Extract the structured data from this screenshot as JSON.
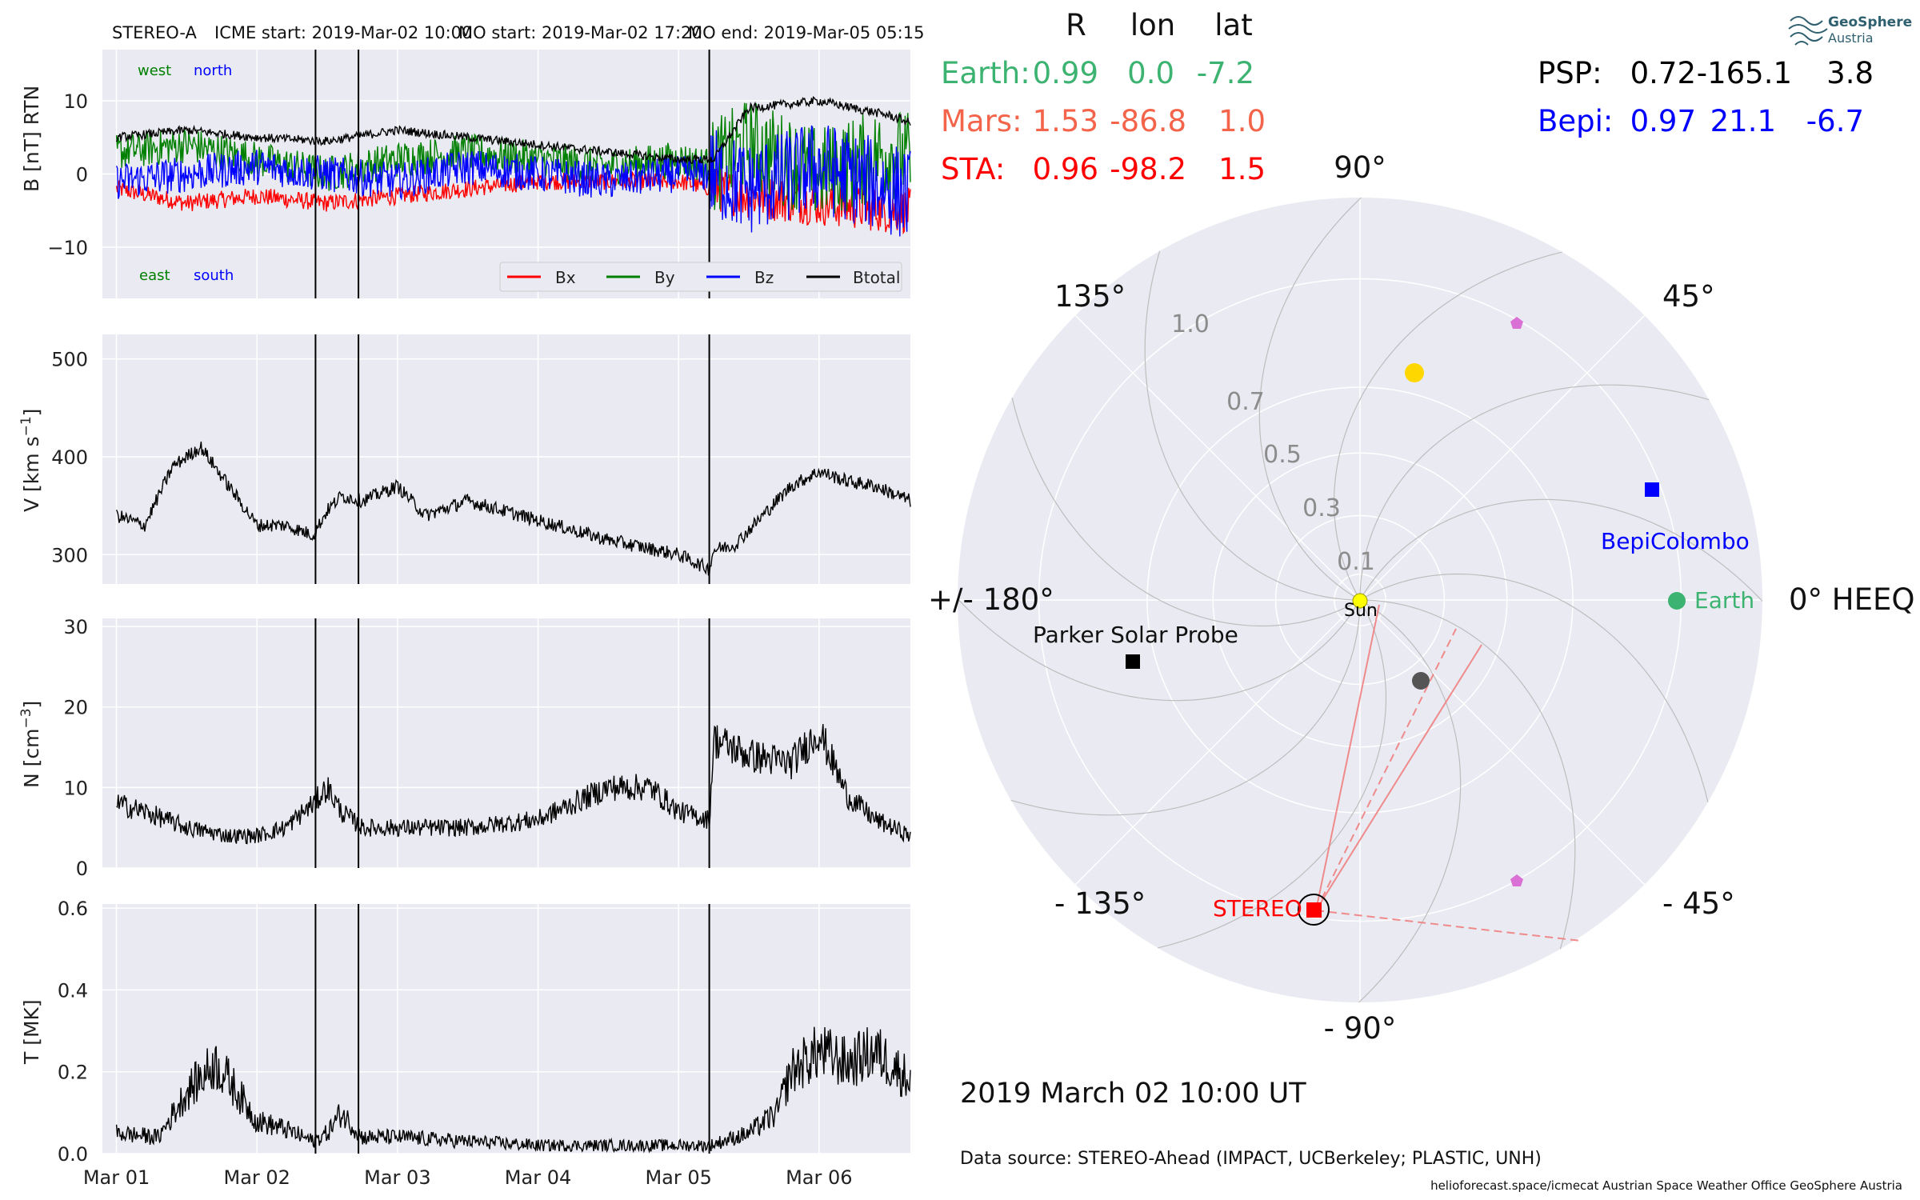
{
  "header": {
    "spacecraft": "STEREO-A",
    "icme_start": "ICME start: 2019-Mar-02 10:00",
    "mo_start": "MO start: 2019-Mar-02 17:20",
    "mo_end": "MO end: 2019-Mar-05 05:15"
  },
  "colors": {
    "panel_bg": "#eaeaf2",
    "bx": "#ff0000",
    "by": "#008000",
    "bz": "#0000ff",
    "btotal": "#000000",
    "earth": "#3cb371",
    "mars": "#f4644a",
    "sta": "#ff0000",
    "bepi": "#0000ff",
    "psp": "#000000",
    "pentagon": "#da70d6",
    "sun": "#ffff00",
    "venus": "#ffd700",
    "mercury": "#555555"
  },
  "chart_data": [
    {
      "type": "line",
      "panel": "magnetic-field",
      "ylabel": "B [nT] RTN",
      "ylim": [
        -17,
        17
      ],
      "yticks": [
        -10,
        0,
        10
      ],
      "xlim_days": [
        -0.1,
        5.65
      ],
      "x_tick_labels": [
        "Mar 01",
        "Mar 02",
        "Mar 03",
        "Mar 04",
        "Mar 05",
        "Mar 06"
      ],
      "vlines": [
        "2019-03-02 10:00",
        "2019-03-02 17:20",
        "2019-03-05 05:15"
      ],
      "annotations": {
        "top_left": "west",
        "top_right": "north",
        "bottom_left": "east",
        "bottom_right": "south"
      },
      "legend": "bottom-right",
      "grid": true,
      "series": [
        {
          "name": "Bx",
          "x": [
            0,
            0.5,
            1,
            1.5,
            2,
            2.5,
            3,
            3.5,
            4,
            4.25,
            4.5,
            5,
            5.5,
            5.65
          ],
          "values": [
            -2,
            -4,
            -3,
            -4,
            -3,
            -2,
            -1,
            -1,
            -1,
            -2,
            -3,
            -4,
            -5,
            -5
          ]
        },
        {
          "name": "By",
          "x": [
            0,
            0.5,
            1,
            1.5,
            2,
            2.5,
            3,
            3.5,
            4,
            4.25,
            4.5,
            5,
            5.5,
            5.65
          ],
          "values": [
            3,
            4,
            2,
            0,
            2,
            3,
            2,
            1,
            2,
            1,
            4,
            0,
            3,
            2
          ]
        },
        {
          "name": "Bz",
          "x": [
            0,
            0.5,
            1,
            1.5,
            2,
            2.5,
            3,
            3.5,
            4,
            4.25,
            4.5,
            5,
            5.5,
            5.65
          ],
          "values": [
            -1,
            0,
            1,
            0,
            -1,
            1,
            0,
            -1,
            0,
            0,
            -2,
            1,
            -2,
            -3
          ]
        },
        {
          "name": "Btotal",
          "x": [
            0,
            0.5,
            1,
            1.5,
            2,
            2.5,
            3,
            3.5,
            4,
            4.25,
            4.5,
            5,
            5.5,
            5.65
          ],
          "values": [
            5,
            6,
            5,
            4.5,
            6,
            5,
            4,
            3,
            2,
            2,
            9,
            10,
            8,
            7
          ]
        }
      ]
    },
    {
      "type": "line",
      "panel": "speed",
      "ylabel": "V [km s^-1]",
      "ylim": [
        270,
        525
      ],
      "yticks": [
        300,
        400,
        500
      ],
      "grid": true,
      "series": [
        {
          "name": "V",
          "x": [
            0,
            0.2,
            0.4,
            0.6,
            0.8,
            1.0,
            1.2,
            1.4,
            1.5,
            1.6,
            1.75,
            2.0,
            2.2,
            2.5,
            3.0,
            3.5,
            4.0,
            4.22,
            4.25,
            4.4,
            4.6,
            4.8,
            5.0,
            5.2,
            5.4,
            5.65
          ],
          "values": [
            340,
            330,
            390,
            410,
            370,
            330,
            330,
            320,
            345,
            360,
            355,
            370,
            340,
            355,
            335,
            315,
            300,
            285,
            305,
            310,
            340,
            370,
            385,
            375,
            370,
            355
          ]
        }
      ]
    },
    {
      "type": "line",
      "panel": "density",
      "ylabel": "N [cm^-3]",
      "ylim": [
        0,
        31
      ],
      "yticks": [
        0,
        10,
        20,
        30
      ],
      "grid": true,
      "series": [
        {
          "name": "N",
          "x": [
            0,
            0.2,
            0.5,
            0.8,
            1.0,
            1.2,
            1.4,
            1.5,
            1.6,
            1.75,
            2.0,
            2.5,
            3.0,
            3.5,
            3.8,
            4.0,
            4.22,
            4.25,
            4.5,
            4.8,
            5.0,
            5.2,
            5.4,
            5.65
          ],
          "values": [
            8,
            7,
            5,
            4,
            4,
            5,
            8,
            10,
            7,
            5,
            5,
            5,
            6,
            10,
            10,
            7,
            6,
            16,
            14,
            13,
            17,
            9,
            6,
            4
          ]
        }
      ]
    },
    {
      "type": "line",
      "panel": "temperature",
      "ylabel": "T [MK]",
      "ylim": [
        0,
        0.61
      ],
      "yticks": [
        0.0,
        0.2,
        0.4,
        0.6
      ],
      "grid": true,
      "series": [
        {
          "name": "T",
          "x": [
            0,
            0.3,
            0.5,
            0.7,
            0.8,
            1.0,
            1.2,
            1.4,
            1.5,
            1.6,
            1.75,
            2.0,
            2.5,
            3.0,
            3.5,
            4.0,
            4.22,
            4.5,
            4.7,
            4.8,
            5.0,
            5.2,
            5.4,
            5.65
          ],
          "values": [
            0.05,
            0.04,
            0.15,
            0.22,
            0.18,
            0.08,
            0.06,
            0.03,
            0.05,
            0.1,
            0.04,
            0.04,
            0.03,
            0.02,
            0.02,
            0.02,
            0.02,
            0.05,
            0.1,
            0.2,
            0.25,
            0.22,
            0.25,
            0.18
          ]
        }
      ]
    },
    {
      "type": "scatter",
      "panel": "polar-position",
      "radial_ticks": [
        "0.1",
        "0.3",
        "0.5",
        "0.7",
        "1.0"
      ],
      "angle_labels": {
        "a0": "0° HEEQ",
        "a45": "45°",
        "a90": "90°",
        "a135": "135°",
        "a180": "+/- 180°",
        "am135": "- 135°",
        "am90": "- 90°",
        "am45": "- 45°"
      },
      "bodies": [
        {
          "name": "Sun",
          "r": 0.0,
          "lon": 0
        },
        {
          "name": "Earth",
          "r": 0.99,
          "lon": 0.0
        },
        {
          "name": "BepiColombo",
          "r": 0.97,
          "lon": 21.1
        },
        {
          "name": "Parker Solar Probe",
          "r": 0.72,
          "lon": -165.1
        },
        {
          "name": "STEREO-A",
          "r": 0.96,
          "lon": -98.2
        },
        {
          "name": "Venus",
          "r": 0.72,
          "lon": 79
        },
        {
          "name": "Mercury",
          "r": 0.33,
          "lon": -42
        },
        {
          "name": "Pentagon-1",
          "r": 0.99,
          "lon": 60
        },
        {
          "name": "Pentagon-2",
          "r": 0.99,
          "lon": -60
        }
      ]
    }
  ],
  "table": {
    "headers": [
      "R",
      "lon",
      "lat"
    ],
    "rows": [
      {
        "label": "Earth:",
        "r": "0.99",
        "lon": "0.0",
        "lat": "-7.2"
      },
      {
        "label": "Mars:",
        "r": "1.53",
        "lon": "-86.8",
        "lat": "1.0"
      },
      {
        "label": "STA:",
        "r": "0.96",
        "lon": "-98.2",
        "lat": "1.5"
      }
    ],
    "right_rows": [
      {
        "label": "PSP:",
        "r": "0.72",
        "lon": "-165.1",
        "lat": "3.8"
      },
      {
        "label": "Bepi:",
        "r": "0.97",
        "lon": "21.1",
        "lat": "-6.7"
      }
    ]
  },
  "labels": {
    "earth": "Earth",
    "bepi": "BepiColombo",
    "psp": "Parker Solar Probe",
    "sta": "STEREO",
    "sun": "Sun"
  },
  "footer": {
    "datetime": "2019 March 02  10:00 UT",
    "source": "Data source: STEREO-Ahead (IMPACT, UCBerkeley; PLASTIC, UNH)",
    "credits": "helioforecast.space/icmecat   Austrian Space Weather Office   GeoSphere Austria"
  },
  "logo": {
    "line1": "GeoSphere",
    "line2": "Austria"
  }
}
